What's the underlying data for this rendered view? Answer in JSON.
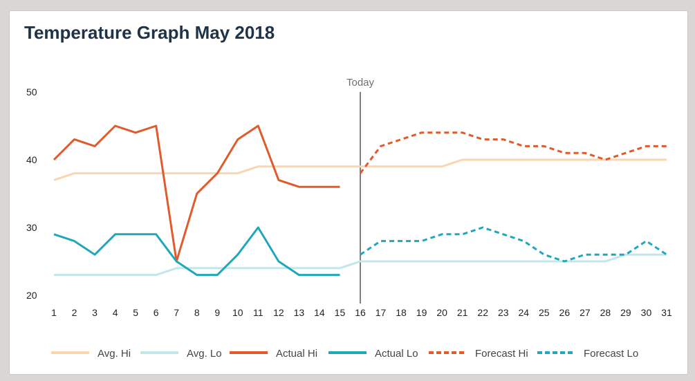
{
  "title": "Temperature Graph May 2018",
  "chart_data": {
    "type": "line",
    "title": "Temperature Graph May 2018",
    "xlabel": "",
    "ylabel": "",
    "x": [
      1,
      2,
      3,
      4,
      5,
      6,
      7,
      8,
      9,
      10,
      11,
      12,
      13,
      14,
      15,
      16,
      17,
      18,
      19,
      20,
      21,
      22,
      23,
      24,
      25,
      26,
      27,
      28,
      29,
      30,
      31
    ],
    "xlim": [
      1,
      31
    ],
    "ylim": [
      20,
      50
    ],
    "yticks": [
      20,
      30,
      40,
      50
    ],
    "grid": false,
    "legend_position": "bottom",
    "annotation": {
      "label": "Today",
      "x": 16
    },
    "series": [
      {
        "name": "Avg. Hi",
        "color": "#fad6b0",
        "style": "solid",
        "x": [
          1,
          2,
          3,
          4,
          5,
          6,
          7,
          8,
          9,
          10,
          11,
          12,
          13,
          14,
          15,
          16,
          17,
          18,
          19,
          20,
          21,
          22,
          23,
          24,
          25,
          26,
          27,
          28,
          29,
          30,
          31
        ],
        "values": [
          37,
          38,
          38,
          38,
          38,
          38,
          38,
          38,
          38,
          38,
          39,
          39,
          39,
          39,
          39,
          39,
          39,
          39,
          39,
          39,
          40,
          40,
          40,
          40,
          40,
          40,
          40,
          40,
          40,
          40,
          40
        ]
      },
      {
        "name": "Avg. Lo",
        "color": "#c2e6ea",
        "style": "solid",
        "x": [
          1,
          2,
          3,
          4,
          5,
          6,
          7,
          8,
          9,
          10,
          11,
          12,
          13,
          14,
          15,
          16,
          17,
          18,
          19,
          20,
          21,
          22,
          23,
          24,
          25,
          26,
          27,
          28,
          29,
          30,
          31
        ],
        "values": [
          23,
          23,
          23,
          23,
          23,
          23,
          24,
          24,
          24,
          24,
          24,
          24,
          24,
          24,
          24,
          25,
          25,
          25,
          25,
          25,
          25,
          25,
          25,
          25,
          25,
          25,
          25,
          25,
          26,
          26,
          26
        ]
      },
      {
        "name": "Actual Hi",
        "color": "#e05a2b",
        "style": "solid",
        "x": [
          1,
          2,
          3,
          4,
          5,
          6,
          7,
          8,
          9,
          10,
          11,
          12,
          13,
          14,
          15
        ],
        "values": [
          40,
          43,
          42,
          45,
          44,
          45,
          25,
          35,
          38,
          43,
          45,
          37,
          36,
          36,
          36
        ]
      },
      {
        "name": "Actual Lo",
        "color": "#1fa8b8",
        "style": "solid",
        "x": [
          1,
          2,
          3,
          4,
          5,
          6,
          7,
          8,
          9,
          10,
          11,
          12,
          13,
          14,
          15
        ],
        "values": [
          29,
          28,
          26,
          29,
          29,
          29,
          25,
          23,
          23,
          26,
          30,
          25,
          23,
          23,
          23
        ]
      },
      {
        "name": "Forecast Hi",
        "color": "#e05a2b",
        "style": "dashed",
        "x": [
          16,
          17,
          18,
          19,
          20,
          21,
          22,
          23,
          24,
          25,
          26,
          27,
          28,
          29,
          30,
          31
        ],
        "values": [
          38,
          42,
          43,
          44,
          44,
          44,
          43,
          43,
          42,
          42,
          41,
          41,
          40,
          41,
          42,
          42
        ]
      },
      {
        "name": "Forecast Lo",
        "color": "#1fa8b8",
        "style": "dashed",
        "x": [
          16,
          17,
          18,
          19,
          20,
          21,
          22,
          23,
          24,
          25,
          26,
          27,
          28,
          29,
          30,
          31
        ],
        "values": [
          26,
          28,
          28,
          28,
          29,
          29,
          30,
          29,
          28,
          26,
          25,
          26,
          26,
          26,
          28,
          26
        ]
      }
    ]
  }
}
